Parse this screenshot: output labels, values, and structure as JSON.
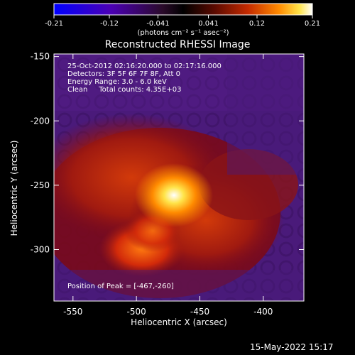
{
  "colorbar": {
    "ticks": [
      "-0.21",
      "-0.12",
      "-0.041",
      "0.041",
      "0.12",
      "0.21"
    ],
    "tick_values": [
      -0.21,
      -0.12,
      -0.041,
      0.041,
      0.12,
      0.21
    ],
    "unit_label": "(photons cm⁻² s⁻¹ asec⁻²)",
    "colormap": [
      "#0000ff",
      "#4b00b4",
      "#3a0a3a",
      "#000000",
      "#5a0a00",
      "#c42a00",
      "#ff8a00",
      "#ffe44a",
      "#ffffff"
    ]
  },
  "chart_data": {
    "type": "heatmap",
    "title": "Reconstructed RHESSI Image",
    "xlabel": "Heliocentric X (arcsec)",
    "ylabel": "Heliocentric Y (arcsec)",
    "xlim": [
      -565,
      -368
    ],
    "ylim": [
      -340,
      -148
    ],
    "x_ticks": [
      -550,
      -500,
      -450,
      -400
    ],
    "y_ticks": [
      -150,
      -200,
      -250,
      -300
    ],
    "x_tick_labels": [
      "-550",
      "-500",
      "-450",
      "-400"
    ],
    "y_tick_labels": [
      "-150",
      "-200",
      "-250",
      "-300"
    ],
    "peak": [
      -467,
      -260
    ],
    "info_lines": [
      "25-Oct-2012 02:16:20.000 to 02:17:16.000",
      "Detectors: 3F 5F 6F 7F 8F, Att 0",
      "Energy Range: 3.0 - 6.0 keV",
      "Clean     Total counts: 4.35E+03"
    ],
    "peak_label": "Position of Peak = [-467,-260]"
  },
  "footer": {
    "date": "15-May-2022 15:17"
  }
}
